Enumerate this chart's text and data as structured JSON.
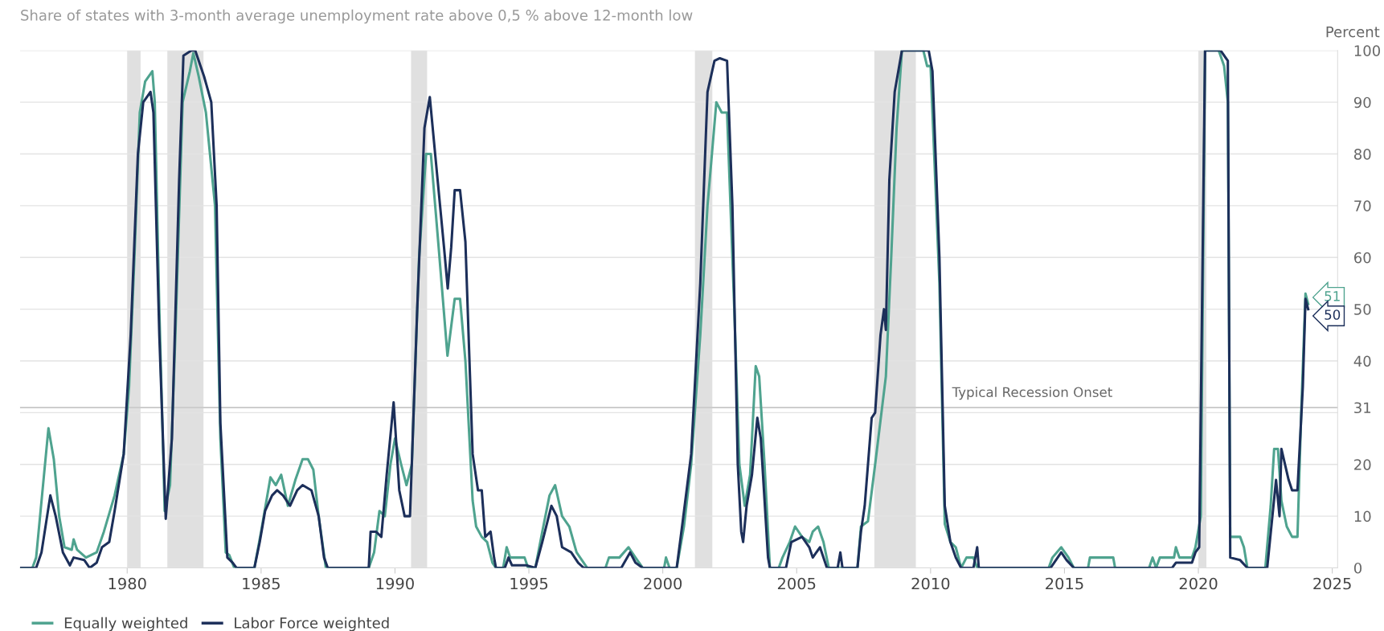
{
  "chart_data": {
    "type": "line",
    "title": "Share of states with 3-month average unemployment rate above 0,5 % above 12-month low",
    "ylabel": "Percent",
    "xlim": [
      1976,
      2025.2
    ],
    "xticks": [
      1980,
      1985,
      1990,
      1995,
      2000,
      2005,
      2010,
      2015,
      2020,
      2025
    ],
    "ylim": [
      0,
      100
    ],
    "yticks": [
      0,
      10,
      20,
      {
        "value": 30,
        "label": null
      },
      {
        "value": 31,
        "label": "31"
      },
      40,
      50,
      60,
      70,
      80,
      90,
      100
    ],
    "grid": "y",
    "legend": "bottom left",
    "marker": "none",
    "line_style": "solid",
    "series": [
      {
        "name": "Equally weighted",
        "color": "#4fa38f",
        "x": [
          1976.0,
          1976.46,
          1976.6,
          1977.06,
          1977.26,
          1977.46,
          1977.66,
          1977.93,
          1978.0,
          1978.13,
          1978.46,
          1978.86,
          1979.13,
          1979.53,
          1979.87,
          1980.07,
          1980.27,
          1980.47,
          1980.67,
          1980.94,
          1981.03,
          1981.2,
          1981.4,
          1981.6,
          1981.8,
          1982.07,
          1982.34,
          1982.47,
          1982.67,
          1982.94,
          1983.28,
          1983.48,
          1983.68,
          1983.81,
          1984.0,
          1984.75,
          1985.0,
          1985.35,
          1985.55,
          1985.75,
          1986.0,
          1986.28,
          1986.55,
          1986.75,
          1986.95,
          1987.15,
          1987.42,
          1989.02,
          1989.22,
          1989.42,
          1989.62,
          1989.83,
          1990.0,
          1990.23,
          1990.43,
          1990.63,
          1990.9,
          1991.16,
          1991.34,
          1991.63,
          1991.96,
          1992.23,
          1992.43,
          1992.63,
          1992.9,
          1993.03,
          1993.24,
          1993.44,
          1993.64,
          1993.77,
          1994.04,
          1994.17,
          1994.3,
          1994.84,
          1994.97,
          1995.24,
          1995.5,
          1995.77,
          1995.98,
          1996.24,
          1996.51,
          1996.78,
          1996.98,
          1997.18,
          1997.86,
          1997.99,
          1998.38,
          1998.72,
          1998.98,
          1999.25,
          2000.05,
          2000.12,
          2000.25,
          2000.52,
          2000.79,
          2001.06,
          2001.4,
          2001.67,
          2002.0,
          2002.2,
          2002.4,
          2002.67,
          2002.86,
          2003.06,
          2003.26,
          2003.47,
          2003.6,
          2003.8,
          2004.0,
          2004.33,
          2004.47,
          2004.74,
          2004.94,
          2005.2,
          2005.47,
          2005.6,
          2005.8,
          2006.0,
          2006.2,
          2007.27,
          2007.4,
          2007.66,
          2007.93,
          2008.33,
          2008.53,
          2008.73,
          2008.93,
          2009.73,
          2009.87,
          2010.0,
          2010.07,
          2010.33,
          2010.53,
          2010.74,
          2010.94,
          2011.14,
          2011.34,
          2011.6,
          2011.74,
          2014.41,
          2014.55,
          2014.88,
          2015.15,
          2015.35,
          2015.88,
          2015.95,
          2016.82,
          2016.89,
          2018.16,
          2018.29,
          2018.42,
          2018.56,
          2019.09,
          2019.16,
          2019.29,
          2019.76,
          2019.89,
          2020.09,
          2020.25,
          2020.76,
          2020.96,
          2021.1,
          2021.19,
          2021.56,
          2021.7,
          2021.83,
          2022.5,
          2022.7,
          2022.83,
          2022.97,
          2023.1,
          2023.3,
          2023.5,
          2023.7,
          2023.84,
          2024.0,
          2024.1
        ],
        "value_labels": [
          null,
          null,
          null,
          null,
          null,
          null,
          null,
          null,
          null,
          null,
          null,
          null,
          null,
          null,
          null,
          null,
          null,
          null,
          null,
          null,
          null,
          null,
          null,
          null,
          null,
          null,
          null,
          null,
          null,
          null,
          null,
          null,
          null,
          null,
          null,
          null,
          null,
          null,
          null,
          null,
          null,
          null,
          null,
          null,
          null,
          null,
          null,
          null,
          null,
          null,
          null,
          null,
          null,
          null,
          null,
          null,
          null,
          null,
          null,
          null,
          null,
          null,
          null,
          null,
          null,
          null,
          null,
          null,
          null,
          null,
          null,
          null,
          null,
          null,
          null,
          null,
          null,
          null,
          null,
          null,
          null,
          null,
          null,
          null,
          null,
          null,
          null,
          null,
          null,
          null,
          null,
          null,
          null,
          null,
          null,
          null,
          null,
          null,
          null,
          null,
          null,
          null,
          null,
          null,
          null,
          null,
          null,
          null,
          null,
          null,
          null,
          null,
          null,
          null,
          null,
          null,
          null,
          null,
          null,
          null,
          null,
          null,
          null,
          null,
          null,
          null,
          null,
          null,
          null,
          null,
          null,
          null,
          null,
          null,
          null,
          null,
          null,
          null,
          null,
          null,
          null,
          null,
          null,
          null,
          null,
          null,
          null,
          null,
          null,
          null,
          null,
          null,
          null,
          null,
          null,
          null,
          null,
          null,
          null,
          null,
          null,
          null,
          null,
          null,
          null,
          null,
          null,
          null,
          null,
          null,
          null,
          null,
          null,
          null,
          null,
          null,
          "51"
        ],
        "values": [
          0,
          0,
          2,
          27,
          21,
          10,
          4,
          3.5,
          5.5,
          3.5,
          2,
          3,
          7,
          14,
          22,
          35,
          60,
          88,
          94,
          96,
          90,
          50,
          11,
          16,
          45,
          90,
          96,
          99.5,
          95,
          88,
          70,
          25,
          3,
          2.5,
          0,
          0,
          7,
          17.5,
          16,
          18,
          12,
          17,
          21,
          21,
          19,
          10,
          0,
          0,
          3,
          11,
          10,
          20,
          25,
          20,
          16,
          20,
          60,
          80,
          80,
          62,
          41,
          52,
          52,
          40,
          13,
          8,
          6,
          5,
          1,
          0,
          0,
          4,
          2,
          2,
          0,
          0,
          7,
          14,
          16,
          10,
          8,
          3,
          1.5,
          0,
          0,
          2,
          2,
          4,
          2,
          0,
          0,
          2,
          0,
          0,
          8,
          20,
          45,
          70,
          90,
          88,
          88,
          50,
          20,
          12,
          18,
          39,
          37,
          20,
          0,
          0,
          2,
          5,
          8,
          6,
          5,
          7,
          8,
          5,
          0,
          0,
          8,
          9,
          20,
          37,
          60,
          85,
          100,
          100,
          97,
          97,
          88,
          55,
          8.5,
          5,
          4,
          0,
          2,
          2,
          0,
          0,
          2,
          4,
          2,
          0,
          0,
          2,
          2,
          0,
          0,
          2,
          0,
          2,
          2,
          4,
          2,
          2,
          4,
          10,
          100,
          100,
          97,
          90,
          6,
          6,
          4,
          0,
          0,
          12,
          23,
          23,
          13,
          8,
          6,
          6,
          30,
          53,
          51
        ]
      },
      {
        "name": "Labor Force weighted",
        "color": "#1c2f5a",
        "x": [
          1976.0,
          1976.6,
          1976.8,
          1977.13,
          1977.33,
          1977.6,
          1977.86,
          1978.0,
          1978.4,
          1978.6,
          1978.86,
          1979.06,
          1979.33,
          1979.53,
          1979.87,
          1980.13,
          1980.4,
          1980.6,
          1980.87,
          1980.98,
          1981.2,
          1981.44,
          1981.67,
          1981.94,
          1982.1,
          1982.4,
          1982.54,
          1982.87,
          1983.14,
          1983.34,
          1983.48,
          1983.74,
          1983.94,
          1984.08,
          1984.75,
          1984.95,
          1985.15,
          1985.41,
          1985.6,
          1985.82,
          1986.08,
          1986.35,
          1986.55,
          1986.88,
          1987.15,
          1987.35,
          1987.49,
          1989.02,
          1989.09,
          1989.29,
          1989.49,
          1989.69,
          1989.95,
          1990.16,
          1990.36,
          1990.56,
          1990.83,
          1991.1,
          1991.3,
          1991.5,
          1991.83,
          1991.97,
          1992.1,
          1992.23,
          1992.43,
          1992.63,
          1992.9,
          1993.1,
          1993.24,
          1993.37,
          1993.57,
          1993.7,
          1993.77,
          1994.1,
          1994.24,
          1994.37,
          1994.9,
          1995.24,
          1995.5,
          1995.84,
          1996.04,
          1996.24,
          1996.58,
          1996.84,
          1997.05,
          1998.45,
          1998.78,
          1998.98,
          1999.25,
          2000.52,
          2000.72,
          2001.06,
          2001.4,
          2001.67,
          2001.93,
          2002.13,
          2002.4,
          2002.6,
          2002.8,
          2002.93,
          2003.0,
          2003.13,
          2003.33,
          2003.53,
          2003.66,
          2003.93,
          2004.0,
          2004.6,
          2004.8,
          2005.2,
          2005.47,
          2005.6,
          2005.87,
          2006.13,
          2006.53,
          2006.63,
          2006.71,
          2007.27,
          2007.4,
          2007.54,
          2007.8,
          2007.93,
          2008.13,
          2008.26,
          2008.33,
          2008.46,
          2008.66,
          2008.93,
          2009.93,
          2010.07,
          2010.33,
          2010.53,
          2010.74,
          2010.94,
          2011.14,
          2011.6,
          2011.74,
          2011.8,
          2014.48,
          2014.88,
          2015.08,
          2015.35,
          2019.02,
          2019.16,
          2019.76,
          2019.89,
          2020.03,
          2020.25,
          2020.83,
          2021.1,
          2021.19,
          2021.56,
          2021.83,
          2022.57,
          2022.9,
          2023.03,
          2023.1,
          2023.37,
          2023.5,
          2023.7,
          2023.9,
          2024.0,
          2024.1
        ],
        "value_labels": [
          null,
          null,
          null,
          null,
          null,
          null,
          null,
          null,
          null,
          null,
          null,
          null,
          null,
          null,
          null,
          null,
          null,
          null,
          null,
          null,
          null,
          null,
          null,
          null,
          null,
          null,
          null,
          null,
          null,
          null,
          null,
          null,
          null,
          null,
          null,
          null,
          null,
          null,
          null,
          null,
          null,
          null,
          null,
          null,
          null,
          null,
          null,
          null,
          null,
          null,
          null,
          null,
          null,
          null,
          null,
          null,
          null,
          null,
          null,
          null,
          null,
          null,
          null,
          null,
          null,
          null,
          null,
          null,
          null,
          null,
          null,
          null,
          null,
          null,
          null,
          null,
          null,
          null,
          null,
          null,
          null,
          null,
          null,
          null,
          null,
          null,
          null,
          null,
          null,
          null,
          null,
          null,
          null,
          null,
          null,
          null,
          null,
          null,
          null,
          null,
          null,
          null,
          null,
          null,
          null,
          null,
          null,
          null,
          null,
          null,
          null,
          null,
          null,
          null,
          null,
          null,
          null,
          null,
          null,
          null,
          null,
          null,
          null,
          null,
          null,
          null,
          null,
          null,
          null,
          null,
          null,
          null,
          null,
          null,
          null,
          null,
          null,
          null,
          null,
          null,
          null,
          null,
          null,
          null,
          null,
          null,
          null,
          null,
          null,
          null,
          null,
          null,
          null,
          null,
          null,
          null,
          null,
          null,
          null,
          null,
          null,
          null,
          "50"
        ],
        "values": [
          0,
          0,
          3,
          14,
          10,
          3,
          0.5,
          2,
          1.5,
          0,
          1,
          4,
          5,
          11,
          22,
          45,
          80,
          90,
          92,
          88,
          45,
          9.5,
          25,
          75,
          99,
          100,
          100,
          95,
          90,
          70,
          28,
          2,
          1,
          0,
          0,
          5,
          11,
          14,
          15,
          14,
          12,
          15,
          16,
          15,
          10,
          2,
          0,
          0,
          7,
          7,
          6,
          18,
          32,
          15,
          10,
          10,
          50,
          85,
          91,
          80,
          62,
          54,
          62,
          73,
          73,
          63,
          22,
          15,
          15,
          6,
          7,
          2,
          0,
          0,
          2,
          0.5,
          0.5,
          0,
          5,
          12,
          10,
          4,
          3,
          1,
          0,
          0,
          3,
          1,
          0,
          0,
          8,
          22,
          55,
          92,
          98,
          98.5,
          98,
          70,
          20,
          7,
          5,
          12,
          18,
          29,
          25,
          2,
          0,
          0,
          5,
          6,
          4,
          2,
          4,
          0,
          0,
          3,
          0,
          0,
          7,
          12,
          29,
          30,
          45,
          50,
          46,
          75,
          92,
          100,
          100,
          96,
          60,
          12,
          5,
          2,
          0,
          0,
          4,
          0,
          0,
          3,
          1.5,
          0,
          0,
          1,
          1,
          3,
          4,
          100,
          100,
          98,
          2,
          1.5,
          0,
          0,
          17,
          10,
          23,
          17,
          15,
          15,
          35,
          52,
          50
        ]
      }
    ],
    "bands": [
      {
        "axis": "x",
        "from": 1980.0,
        "to": 1980.5,
        "color": "#e0e0e0"
      },
      {
        "axis": "x",
        "from": 1981.5,
        "to": 1982.85,
        "color": "#e0e0e0"
      },
      {
        "axis": "x",
        "from": 1990.6,
        "to": 1991.2,
        "color": "#e0e0e0"
      },
      {
        "axis": "x",
        "from": 2001.2,
        "to": 2001.85,
        "color": "#e0e0e0"
      },
      {
        "axis": "x",
        "from": 2007.9,
        "to": 2009.45,
        "color": "#e0e0e0"
      },
      {
        "axis": "x",
        "from": 2020.0,
        "to": 2020.3,
        "color": "#e0e0e0"
      }
    ],
    "ref_lines": [
      {
        "axis": "y",
        "value": 31,
        "label": "Typical Recession Onset",
        "color": "#8c8c8c",
        "line_style": "solid"
      }
    ]
  }
}
